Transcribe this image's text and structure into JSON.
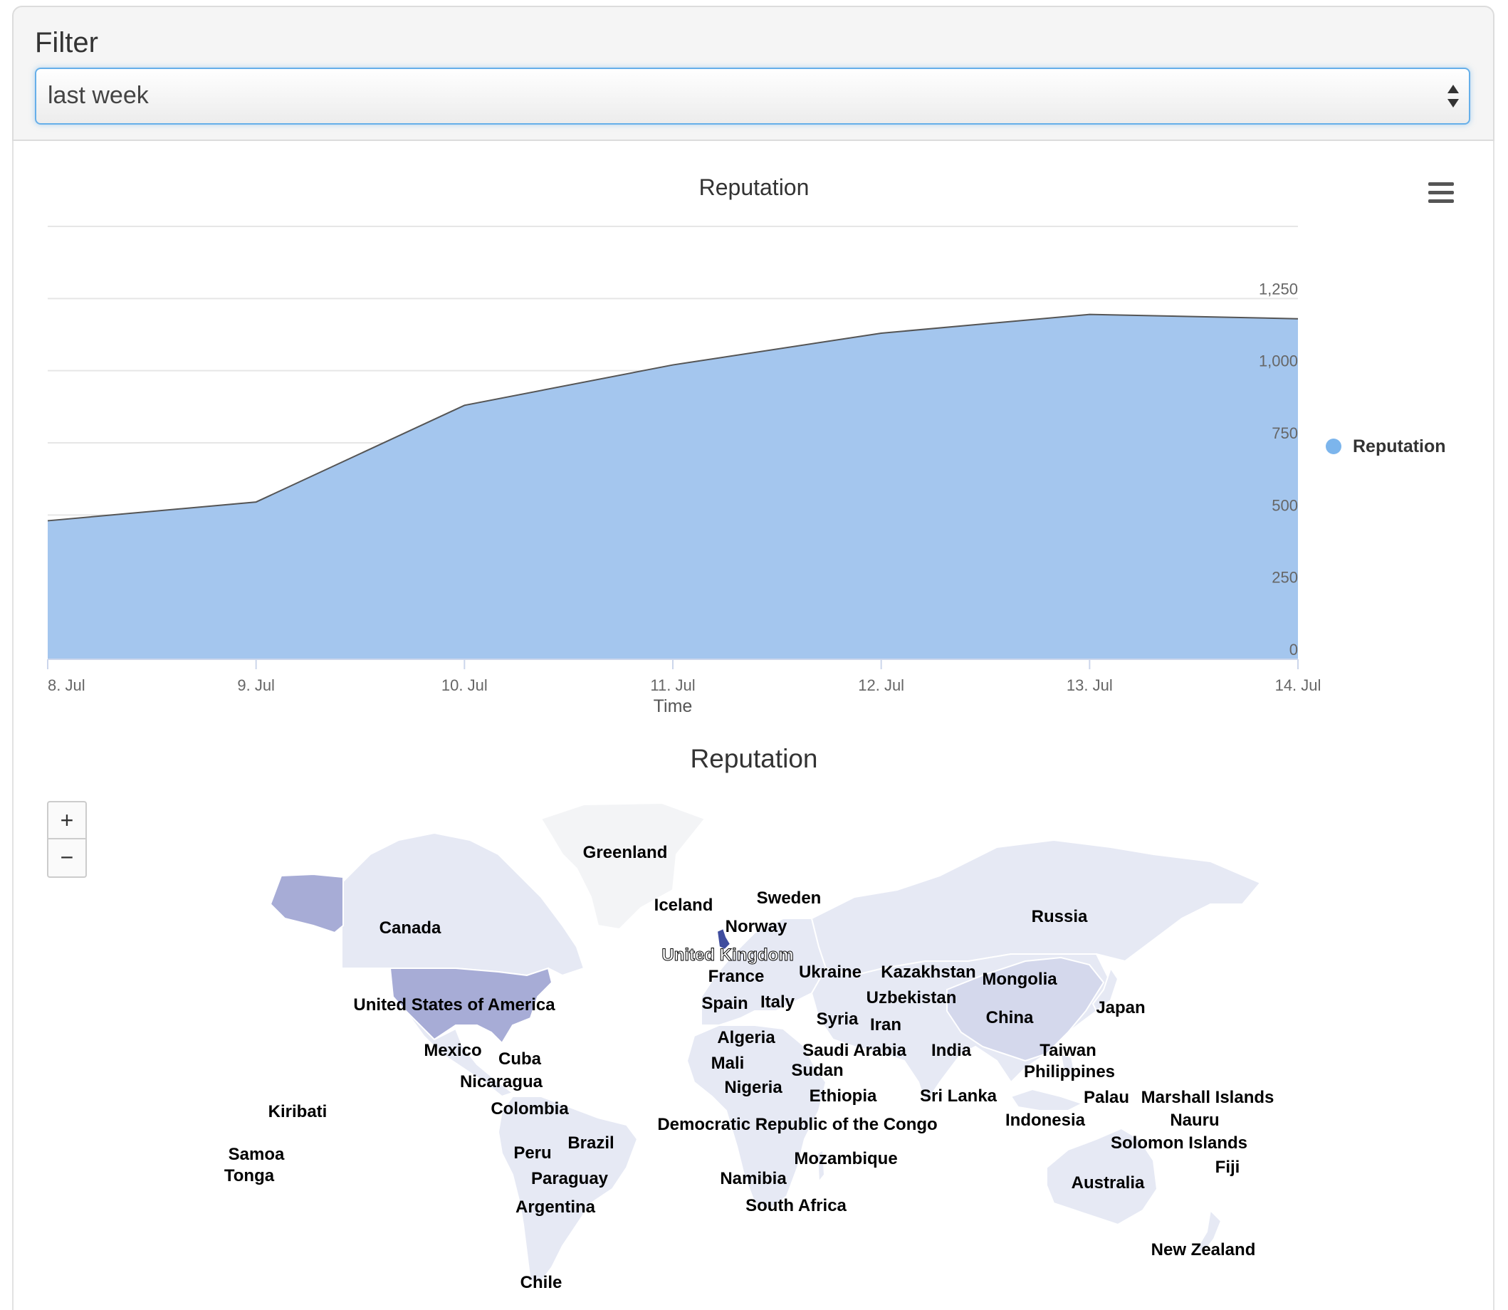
{
  "filter": {
    "title": "Filter",
    "selected": "last week"
  },
  "area_chart": {
    "menu_icon": "hamburger-menu-icon",
    "legend": {
      "label": "Reputation",
      "color": "#7cb5ec"
    }
  },
  "map_chart": {
    "title": "Reputation",
    "zoom_in_label": "+",
    "zoom_out_label": "−",
    "colors": {
      "land": "#e6e9f4",
      "ocean": "#ffffff",
      "highlight_mid": "#a7acd6",
      "highlight_high": "#3f4d9e"
    },
    "labels": [
      {
        "name": "Greenland"
      },
      {
        "name": "Iceland"
      },
      {
        "name": "Sweden"
      },
      {
        "name": "Norway"
      },
      {
        "name": "Canada"
      },
      {
        "name": "Russia"
      },
      {
        "name": "United Kingdom"
      },
      {
        "name": "France"
      },
      {
        "name": "Ukraine"
      },
      {
        "name": "Kazakhstan"
      },
      {
        "name": "Mongolia"
      },
      {
        "name": "Uzbekistan"
      },
      {
        "name": "United States of America"
      },
      {
        "name": "Spain"
      },
      {
        "name": "Italy"
      },
      {
        "name": "Japan"
      },
      {
        "name": "Syria"
      },
      {
        "name": "China"
      },
      {
        "name": "Iran"
      },
      {
        "name": "Algeria"
      },
      {
        "name": "Mexico"
      },
      {
        "name": "Saudi Arabia"
      },
      {
        "name": "India"
      },
      {
        "name": "Taiwan"
      },
      {
        "name": "Cuba"
      },
      {
        "name": "Mali"
      },
      {
        "name": "Sudan"
      },
      {
        "name": "Philippines"
      },
      {
        "name": "Nicaragua"
      },
      {
        "name": "Nigeria"
      },
      {
        "name": "Ethiopia"
      },
      {
        "name": "Sri Lanka"
      },
      {
        "name": "Palau"
      },
      {
        "name": "Marshall Islands"
      },
      {
        "name": "Colombia"
      },
      {
        "name": "Kiribati"
      },
      {
        "name": "Democratic Republic of the Congo"
      },
      {
        "name": "Indonesia"
      },
      {
        "name": "Nauru"
      },
      {
        "name": "Brazil"
      },
      {
        "name": "Solomon Islands"
      },
      {
        "name": "Samoa"
      },
      {
        "name": "Peru"
      },
      {
        "name": "Mozambique"
      },
      {
        "name": "Fiji"
      },
      {
        "name": "Tonga"
      },
      {
        "name": "Paraguay"
      },
      {
        "name": "Namibia"
      },
      {
        "name": "Australia"
      },
      {
        "name": "Argentina"
      },
      {
        "name": "South Africa"
      },
      {
        "name": "New Zealand"
      },
      {
        "name": "Chile"
      }
    ]
  },
  "chart_data": {
    "type": "area",
    "title": "Reputation",
    "xlabel": "Time",
    "ylabel": "",
    "categories": [
      "8. Jul",
      "9. Jul",
      "10. Jul",
      "11. Jul",
      "12. Jul",
      "13. Jul",
      "14. Jul"
    ],
    "y_ticks": [
      "0",
      "250",
      "500",
      "750",
      "1,000",
      "1,250"
    ],
    "ylim": [
      0,
      1500
    ],
    "grid": true,
    "legend_position": "right",
    "series": [
      {
        "name": "Reputation",
        "color": "#7cb5ec",
        "values": [
          480,
          545,
          880,
          1020,
          1130,
          1195,
          1180
        ]
      }
    ]
  }
}
